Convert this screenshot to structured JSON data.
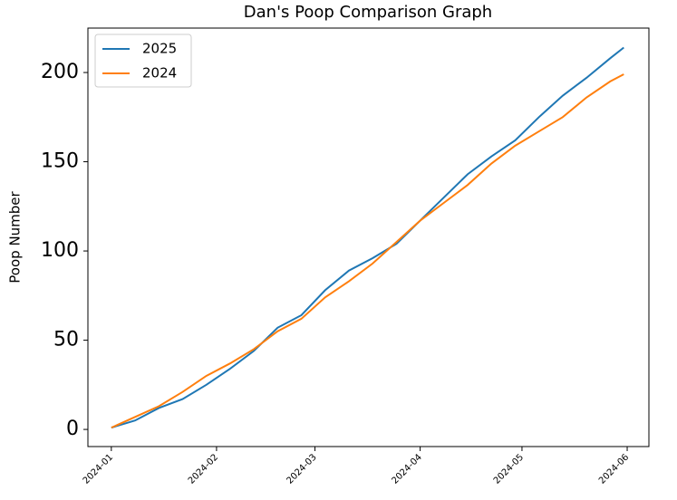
{
  "chart_data": {
    "type": "line",
    "title": "Dan's Poop Comparison Graph",
    "y_label": "Poop Number",
    "x": [
      0,
      7,
      14,
      21,
      28,
      35,
      42,
      49,
      56,
      63,
      70,
      77,
      84,
      91,
      98,
      105,
      112,
      119,
      126,
      133,
      140,
      147,
      151
    ],
    "series": [
      {
        "name": "2025",
        "color": "#1f77b4",
        "values": [
          1,
          5,
          12,
          17,
          25,
          34,
          44,
          57,
          64,
          78,
          89,
          96,
          104,
          117,
          130,
          143,
          153,
          162,
          175,
          187,
          197,
          208,
          214
        ]
      },
      {
        "name": "2024",
        "color": "#ff7f0e",
        "values": [
          1,
          7,
          13,
          21,
          30,
          37,
          45,
          55,
          62,
          74,
          83,
          93,
          105,
          117,
          127,
          137,
          149,
          159,
          167,
          175,
          186,
          195,
          199
        ]
      }
    ],
    "xlim": [
      -6.9,
      158.4
    ],
    "xticks": [
      {
        "value": 0,
        "label": "2024-01"
      },
      {
        "value": 31,
        "label": "2024-02"
      },
      {
        "value": 60,
        "label": "2024-03"
      },
      {
        "value": 91,
        "label": "2024-04"
      },
      {
        "value": 121,
        "label": "2024-05"
      },
      {
        "value": 152,
        "label": "2024-06"
      }
    ],
    "ylim": [
      -9.6,
      224.9
    ],
    "yticks": [
      0,
      50,
      100,
      150,
      200
    ],
    "legend": "upper-left"
  }
}
